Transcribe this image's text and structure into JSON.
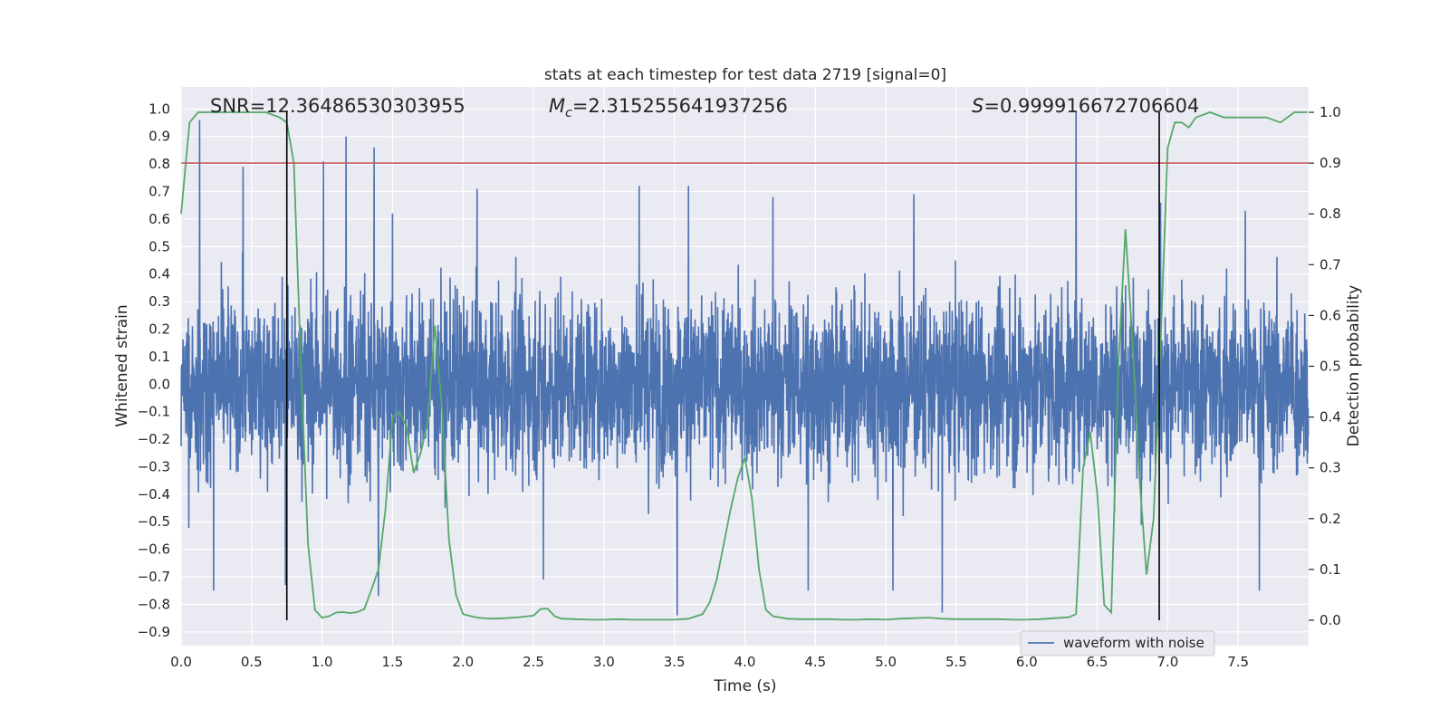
{
  "chart_data": {
    "type": "line",
    "title": "stats at each timestep for test data 2719 [signal=0]",
    "xlabel": "Time (s)",
    "ylabel": "Whitened strain",
    "y2label": "Detection probability",
    "xlim": [
      0,
      8
    ],
    "ylim": [
      -0.95,
      1.08
    ],
    "y2lim": [
      -0.05,
      1.05
    ],
    "x_ticks": [
      0.0,
      0.5,
      1.0,
      1.5,
      2.0,
      2.5,
      3.0,
      3.5,
      4.0,
      4.5,
      5.0,
      5.5,
      6.0,
      6.5,
      7.0,
      7.5
    ],
    "x_tick_labels": [
      "0.0",
      "0.5",
      "1.0",
      "1.5",
      "2.0",
      "2.5",
      "3.0",
      "3.5",
      "4.0",
      "4.5",
      "5.0",
      "5.5",
      "6.0",
      "6.5",
      "7.0",
      "7.5"
    ],
    "y_ticks": [
      -0.9,
      -0.8,
      -0.7,
      -0.6,
      -0.5,
      -0.4,
      -0.3,
      -0.2,
      -0.1,
      0.0,
      0.1,
      0.2,
      0.3,
      0.4,
      0.5,
      0.6,
      0.7,
      0.8,
      0.9,
      1.0
    ],
    "y_tick_labels": [
      "−0.9",
      "−0.8",
      "−0.7",
      "−0.6",
      "−0.5",
      "−0.4",
      "−0.3",
      "−0.2",
      "−0.1",
      "0.0",
      "0.1",
      "0.2",
      "0.3",
      "0.4",
      "0.5",
      "0.6",
      "0.7",
      "0.8",
      "0.9",
      "1.0"
    ],
    "y2_ticks": [
      0.0,
      0.1,
      0.2,
      0.3,
      0.4,
      0.5,
      0.6,
      0.7,
      0.8,
      0.9,
      1.0
    ],
    "y2_tick_labels": [
      "0.0",
      "0.1",
      "0.2",
      "0.3",
      "0.4",
      "0.5",
      "0.6",
      "0.7",
      "0.8",
      "0.9",
      "1.0"
    ],
    "grid": true,
    "legend": {
      "placement": "lower-right",
      "entries": [
        "waveform with noise"
      ]
    },
    "annotations": {
      "snr": "SNR=12.36486530303955",
      "mc_symbol": "M",
      "mc_sub": "c",
      "mc_value": "=2.315255641937256",
      "s_symbol": "S",
      "s_value": "=0.999916672706604"
    },
    "series": [
      {
        "name": "waveform with noise",
        "axis": "left",
        "color": "#4c72b0",
        "sample_count": 4096,
        "typical_envelope": [
          -0.45,
          0.45
        ],
        "peaks": [
          {
            "x": 0.13,
            "y": 0.96
          },
          {
            "x": 0.44,
            "y": 0.79
          },
          {
            "x": 0.74,
            "y": 0.66
          },
          {
            "x": 1.01,
            "y": 0.81
          },
          {
            "x": 1.17,
            "y": 0.9
          },
          {
            "x": 1.37,
            "y": 0.86
          },
          {
            "x": 1.5,
            "y": 0.62
          },
          {
            "x": 2.1,
            "y": 0.71
          },
          {
            "x": 3.25,
            "y": 0.72
          },
          {
            "x": 3.6,
            "y": 0.72
          },
          {
            "x": 4.2,
            "y": 0.68
          },
          {
            "x": 5.2,
            "y": 0.69
          },
          {
            "x": 6.35,
            "y": 0.99
          },
          {
            "x": 6.95,
            "y": 0.66
          },
          {
            "x": 7.55,
            "y": 0.63
          }
        ],
        "troughs": [
          {
            "x": 0.23,
            "y": -0.75
          },
          {
            "x": 0.74,
            "y": -0.73
          },
          {
            "x": 1.4,
            "y": -0.77
          },
          {
            "x": 2.57,
            "y": -0.71
          },
          {
            "x": 3.52,
            "y": -0.84
          },
          {
            "x": 4.45,
            "y": -0.75
          },
          {
            "x": 5.05,
            "y": -0.75
          },
          {
            "x": 5.4,
            "y": -0.83
          },
          {
            "x": 7.65,
            "y": -0.75
          }
        ]
      },
      {
        "name": "",
        "axis": "right",
        "color": "#55a868",
        "x": [
          0.0,
          0.06,
          0.12,
          0.2,
          0.3,
          0.4,
          0.5,
          0.6,
          0.7,
          0.75,
          0.8,
          0.85,
          0.9,
          0.95,
          1.0,
          1.05,
          1.1,
          1.15,
          1.2,
          1.25,
          1.3,
          1.35,
          1.4,
          1.45,
          1.5,
          1.55,
          1.6,
          1.65,
          1.7,
          1.75,
          1.8,
          1.85,
          1.9,
          1.95,
          2.0,
          2.1,
          2.2,
          2.3,
          2.4,
          2.5,
          2.55,
          2.6,
          2.65,
          2.7,
          2.8,
          2.9,
          3.0,
          3.1,
          3.2,
          3.3,
          3.4,
          3.5,
          3.6,
          3.7,
          3.75,
          3.8,
          3.85,
          3.9,
          3.95,
          4.0,
          4.05,
          4.1,
          4.15,
          4.2,
          4.3,
          4.4,
          4.5,
          4.6,
          4.7,
          4.8,
          4.9,
          5.0,
          5.1,
          5.2,
          5.3,
          5.4,
          5.5,
          5.6,
          5.7,
          5.8,
          5.9,
          6.0,
          6.1,
          6.2,
          6.3,
          6.35,
          6.4,
          6.45,
          6.5,
          6.55,
          6.6,
          6.65,
          6.7,
          6.75,
          6.8,
          6.85,
          6.9,
          6.95,
          7.0,
          7.05,
          7.1,
          7.15,
          7.2,
          7.3,
          7.4,
          7.5,
          7.6,
          7.7,
          7.8,
          7.9,
          7.99
        ],
        "y": [
          0.8,
          0.98,
          1.0,
          1.0,
          1.0,
          1.0,
          1.0,
          1.0,
          0.99,
          0.98,
          0.9,
          0.5,
          0.15,
          0.02,
          0.005,
          0.008,
          0.015,
          0.016,
          0.014,
          0.016,
          0.022,
          0.06,
          0.1,
          0.22,
          0.4,
          0.41,
          0.38,
          0.29,
          0.33,
          0.39,
          0.58,
          0.42,
          0.16,
          0.05,
          0.012,
          0.005,
          0.003,
          0.004,
          0.006,
          0.009,
          0.022,
          0.023,
          0.008,
          0.003,
          0.002,
          0.001,
          0.001,
          0.002,
          0.001,
          0.001,
          0.001,
          0.001,
          0.003,
          0.012,
          0.035,
          0.08,
          0.15,
          0.22,
          0.28,
          0.32,
          0.24,
          0.1,
          0.02,
          0.008,
          0.003,
          0.002,
          0.002,
          0.002,
          0.001,
          0.001,
          0.002,
          0.001,
          0.003,
          0.004,
          0.005,
          0.003,
          0.002,
          0.002,
          0.002,
          0.002,
          0.001,
          0.001,
          0.002,
          0.004,
          0.006,
          0.012,
          0.3,
          0.37,
          0.25,
          0.03,
          0.015,
          0.5,
          0.77,
          0.55,
          0.28,
          0.09,
          0.2,
          0.55,
          0.93,
          0.98,
          0.98,
          0.97,
          0.99,
          1.0,
          0.99,
          0.99,
          0.99,
          0.99,
          0.98,
          1.0,
          1.0
        ]
      }
    ],
    "vertical_lines": [
      {
        "x": 0.75,
        "color": "#000000"
      },
      {
        "x": 6.94,
        "color": "#000000"
      }
    ],
    "threshold_line": {
      "axis": "right",
      "y": 0.9,
      "color": "#c44e52"
    }
  }
}
